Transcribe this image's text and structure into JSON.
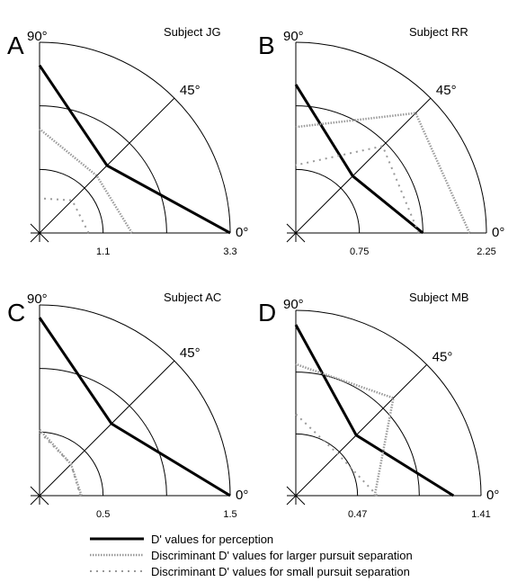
{
  "legend": {
    "perception": "D' values for perception",
    "large": "Discriminant D' values for larger pursuit separation",
    "small": "Discriminant D' values for small pursuit separation"
  },
  "angle_labels": {
    "a90": "90°",
    "a45": "45°",
    "a0": "0°"
  },
  "chart_data": [
    {
      "type": "polar",
      "panel": "A",
      "title": "Subject JG",
      "rmax": 3.3,
      "ticks": [
        "1.1",
        "3.3"
      ],
      "series": [
        {
          "key": "perception",
          "points": [
            [
              0,
              3.3
            ],
            [
              45,
              1.65
            ],
            [
              90,
              2.9
            ]
          ]
        },
        {
          "key": "large",
          "points": [
            [
              0,
              1.6
            ],
            [
              45,
              1.4
            ],
            [
              90,
              1.8
            ]
          ]
        },
        {
          "key": "small",
          "points": [
            [
              0,
              0.85
            ],
            [
              45,
              0.8
            ],
            [
              90,
              0.6
            ]
          ]
        }
      ]
    },
    {
      "type": "polar",
      "panel": "B",
      "title": "Subject RR",
      "rmax": 2.25,
      "ticks": [
        "0.75",
        "2.25"
      ],
      "series": [
        {
          "key": "perception",
          "points": [
            [
              0,
              1.5
            ],
            [
              45,
              0.95
            ],
            [
              90,
              1.75
            ]
          ]
        },
        {
          "key": "large",
          "points": [
            [
              0,
              2.05
            ],
            [
              45,
              2.0
            ],
            [
              90,
              1.25
            ]
          ]
        },
        {
          "key": "small",
          "points": [
            [
              0,
              1.45
            ],
            [
              45,
              1.45
            ],
            [
              90,
              0.8
            ]
          ]
        }
      ]
    },
    {
      "type": "polar",
      "panel": "C",
      "title": "Subject AC",
      "rmax": 1.5,
      "ticks": [
        "0.5",
        "1.5"
      ],
      "series": [
        {
          "key": "perception",
          "points": [
            [
              0,
              1.5
            ],
            [
              45,
              0.8
            ],
            [
              90,
              1.4
            ]
          ]
        },
        {
          "key": "large",
          "points": [
            [
              0,
              0.33
            ],
            [
              45,
              0.35
            ],
            [
              90,
              0.52
            ]
          ]
        },
        {
          "key": "small",
          "points": [
            [
              0,
              0.32
            ],
            [
              45,
              0.35
            ],
            [
              90,
              0.5
            ]
          ]
        }
      ]
    },
    {
      "type": "polar",
      "panel": "D",
      "title": "Subject MB",
      "rmax": 1.41,
      "ticks": [
        "0.47",
        "1.41"
      ],
      "series": [
        {
          "key": "perception",
          "points": [
            [
              0,
              1.2
            ],
            [
              45,
              0.65
            ],
            [
              90,
              1.3
            ]
          ]
        },
        {
          "key": "large",
          "points": [
            [
              0,
              0.6
            ],
            [
              45,
              1.05
            ],
            [
              90,
              1.0
            ]
          ]
        },
        {
          "key": "small",
          "points": [
            [
              0,
              0.62
            ],
            [
              45,
              0.45
            ],
            [
              90,
              0.62
            ]
          ]
        }
      ]
    }
  ]
}
